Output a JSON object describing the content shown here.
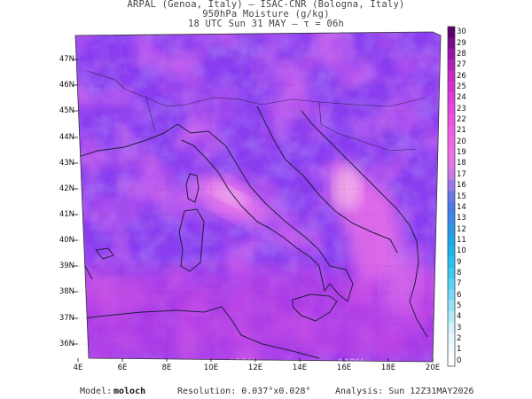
{
  "header": {
    "line1": "ARPAL (Genoa, Italy)  –  ISAC-CNR (Bologna, Italy)",
    "line2": "950hPa Moisture (g/kg)",
    "line3": "18 UTC Sun 31 MAY  –  τ = 06h"
  },
  "map": {
    "lat_labels": [
      "47N",
      "46N",
      "45N",
      "44N",
      "43N",
      "42N",
      "41N",
      "40N",
      "39N",
      "38N",
      "37N",
      "36N"
    ],
    "lon_labels": [
      "4E",
      "6E",
      "8E",
      "10E",
      "12E",
      "14E",
      "16E",
      "18E",
      "20E"
    ],
    "watermark": "ARPAL",
    "colors": {
      "low": "#8c3cf0",
      "mid": "#a032e0",
      "high": "#e06ce8",
      "peak": "#f0b4e8",
      "coast": "#1e1e3c"
    }
  },
  "colorbar": {
    "labels": [
      "30",
      "29",
      "28",
      "27",
      "26",
      "25",
      "24",
      "23",
      "22",
      "21",
      "20",
      "19",
      "18",
      "17",
      "16",
      "15",
      "14",
      "13",
      "12",
      "11",
      "10",
      "9",
      "8",
      "7",
      "6",
      "5",
      "4",
      "3",
      "2",
      "1",
      "0"
    ],
    "colors": [
      "#5a006e",
      "#7a0a8c",
      "#9a14a8",
      "#b41eb8",
      "#c828c8",
      "#d232d2",
      "#dc3cdc",
      "#e646e0",
      "#ee50e6",
      "#f05ae6",
      "#f064e6",
      "#f06ee6",
      "#e676e6",
      "#c87ae6",
      "#9a78e6",
      "#6a76e6",
      "#4a7ae6",
      "#3a88e8",
      "#2c98e8",
      "#1ea8e8",
      "#1eb4ec",
      "#28c0f0",
      "#3ccaf2",
      "#5ad2f4",
      "#78daf6",
      "#96e2f8",
      "#b4eafa",
      "#d2f2fc",
      "#e6f6fe",
      "#f4fbff",
      "#ffffff"
    ]
  },
  "footer": {
    "model_label": "Model:",
    "model_value": "moloch",
    "resolution": "Resolution: 0.037°x0.028°",
    "analysis": "Analysis: Sun 12Z31MAY2026"
  }
}
